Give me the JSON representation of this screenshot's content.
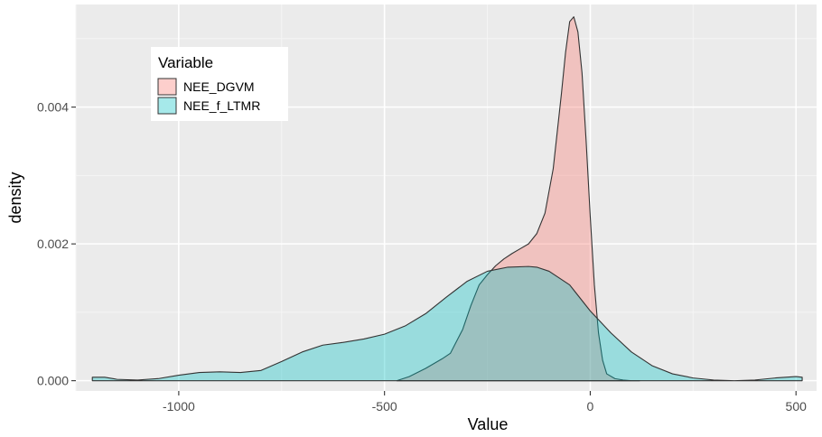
{
  "chart_data": {
    "type": "area",
    "chart_subtype": "density",
    "xlabel": "Value",
    "ylabel": "density",
    "xlim": [
      -1250,
      550
    ],
    "ylim": [
      -0.00015,
      0.0055
    ],
    "x_ticks": [
      -1000,
      -500,
      0,
      500
    ],
    "x_tick_labels": [
      "-1000",
      "-500",
      "0",
      "500"
    ],
    "y_ticks": [
      0.0,
      0.002,
      0.004
    ],
    "y_tick_labels": [
      "0.000",
      "0.002",
      "0.004"
    ],
    "grid": true,
    "background": "#ebebeb",
    "legend": {
      "title": "Variable",
      "position": "top-left"
    },
    "series": [
      {
        "name": "NEE_DGVM",
        "fill": "#f8766d",
        "x": [
          -470,
          -440,
          -400,
          -360,
          -340,
          -310,
          -290,
          -270,
          -250,
          -230,
          -210,
          -190,
          -170,
          -150,
          -130,
          -110,
          -90,
          -70,
          -60,
          -50,
          -40,
          -30,
          -20,
          -10,
          0,
          10,
          20,
          30,
          40,
          60,
          80,
          100,
          120
        ],
        "y": [
          0.0,
          6e-05,
          0.00018,
          0.00032,
          0.0004,
          0.00075,
          0.0011,
          0.0014,
          0.00155,
          0.00168,
          0.00178,
          0.00186,
          0.00193,
          0.002,
          0.00215,
          0.00245,
          0.0031,
          0.0042,
          0.0048,
          0.00525,
          0.00532,
          0.0051,
          0.0045,
          0.0035,
          0.0024,
          0.0014,
          0.0007,
          0.0003,
          0.0001,
          3e-05,
          1e-05,
          0.0,
          0.0
        ]
      },
      {
        "name": "NEE_f_LTMR",
        "fill": "#00bfc4",
        "x": [
          -1210,
          -1180,
          -1150,
          -1100,
          -1050,
          -1000,
          -950,
          -900,
          -850,
          -800,
          -750,
          -700,
          -650,
          -600,
          -550,
          -500,
          -450,
          -400,
          -350,
          -300,
          -250,
          -200,
          -150,
          -130,
          -100,
          -50,
          0,
          50,
          100,
          150,
          200,
          250,
          300,
          350,
          400,
          450,
          500,
          515
        ],
        "y": [
          5e-05,
          5e-05,
          2e-05,
          1e-05,
          3e-05,
          8e-05,
          0.00012,
          0.00013,
          0.00012,
          0.00015,
          0.00028,
          0.00042,
          0.00052,
          0.00056,
          0.00061,
          0.00068,
          0.0008,
          0.00098,
          0.00122,
          0.00145,
          0.0016,
          0.00166,
          0.00167,
          0.00166,
          0.0016,
          0.0014,
          0.00102,
          0.0007,
          0.00042,
          0.00022,
          0.0001,
          4e-05,
          1e-05,
          0.0,
          1e-05,
          4e-05,
          6e-05,
          5e-05
        ]
      }
    ]
  }
}
